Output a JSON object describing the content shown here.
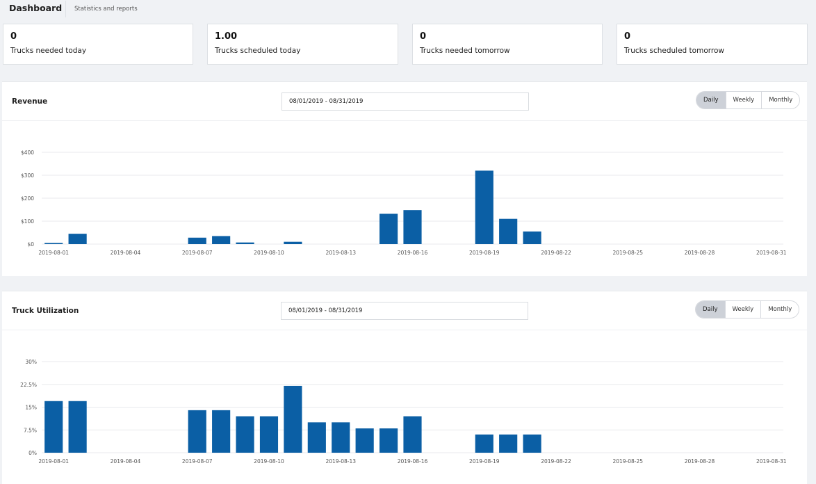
{
  "header": {
    "title": "Dashboard",
    "subtitle": "Statistics and reports"
  },
  "stats": [
    {
      "value": "0",
      "label": "Trucks needed today"
    },
    {
      "value": "1.00",
      "label": "Trucks scheduled today"
    },
    {
      "value": "0",
      "label": "Trucks needed tomorrow"
    },
    {
      "value": "0",
      "label": "Trucks scheduled tomorrow"
    }
  ],
  "revenue": {
    "title": "Revenue",
    "date_range": "08/01/2019 - 08/31/2019",
    "buttons": [
      "Daily",
      "Weekly",
      "Monthly"
    ],
    "active_button": "Daily"
  },
  "utilization": {
    "title": "Truck Utilization",
    "date_range": "08/01/2019 - 08/31/2019",
    "buttons": [
      "Daily",
      "Weekly",
      "Monthly"
    ],
    "active_button": "Daily"
  },
  "colors": {
    "bar": "#0b5fa5",
    "grid": "#e8eaed",
    "background": "#f0f2f5"
  },
  "chart_data": [
    {
      "type": "bar",
      "title": "Revenue",
      "x": [
        "2019-08-01",
        "2019-08-02",
        "2019-08-03",
        "2019-08-04",
        "2019-08-05",
        "2019-08-06",
        "2019-08-07",
        "2019-08-08",
        "2019-08-09",
        "2019-08-10",
        "2019-08-11",
        "2019-08-12",
        "2019-08-13",
        "2019-08-14",
        "2019-08-15",
        "2019-08-16",
        "2019-08-17",
        "2019-08-18",
        "2019-08-19",
        "2019-08-20",
        "2019-08-21",
        "2019-08-22",
        "2019-08-23",
        "2019-08-24",
        "2019-08-25",
        "2019-08-26",
        "2019-08-27",
        "2019-08-28",
        "2019-08-29",
        "2019-08-30",
        "2019-08-31"
      ],
      "values": [
        5,
        45,
        0,
        0,
        0,
        0,
        28,
        35,
        7,
        0,
        10,
        0,
        0,
        0,
        132,
        148,
        0,
        0,
        320,
        110,
        55,
        0,
        0,
        0,
        0,
        0,
        0,
        0,
        0,
        0,
        0
      ],
      "x_tick_labels": [
        "2019-08-01",
        "2019-08-04",
        "2019-08-07",
        "2019-08-10",
        "2019-08-13",
        "2019-08-16",
        "2019-08-19",
        "2019-08-22",
        "2019-08-25",
        "2019-08-28",
        "2019-08-31"
      ],
      "y_tick_labels": [
        "$0",
        "$100",
        "$200",
        "$300",
        "$400"
      ],
      "ylim": [
        0,
        400
      ],
      "grid": true
    },
    {
      "type": "bar",
      "title": "Truck Utilization",
      "x": [
        "2019-08-01",
        "2019-08-02",
        "2019-08-03",
        "2019-08-04",
        "2019-08-05",
        "2019-08-06",
        "2019-08-07",
        "2019-08-08",
        "2019-08-09",
        "2019-08-10",
        "2019-08-11",
        "2019-08-12",
        "2019-08-13",
        "2019-08-14",
        "2019-08-15",
        "2019-08-16",
        "2019-08-17",
        "2019-08-18",
        "2019-08-19",
        "2019-08-20",
        "2019-08-21",
        "2019-08-22",
        "2019-08-23",
        "2019-08-24",
        "2019-08-25",
        "2019-08-26",
        "2019-08-27",
        "2019-08-28",
        "2019-08-29",
        "2019-08-30",
        "2019-08-31"
      ],
      "values": [
        17,
        17,
        0,
        0,
        0,
        0,
        14,
        14,
        12,
        12,
        22,
        10,
        10,
        8,
        8,
        12,
        0,
        0,
        6,
        6,
        6,
        0,
        0,
        0,
        0,
        0,
        0,
        0,
        0,
        0,
        0
      ],
      "x_tick_labels": [
        "2019-08-01",
        "2019-08-04",
        "2019-08-07",
        "2019-08-10",
        "2019-08-13",
        "2019-08-16",
        "2019-08-19",
        "2019-08-22",
        "2019-08-25",
        "2019-08-28",
        "2019-08-31"
      ],
      "y_tick_labels": [
        "0%",
        "7.5%",
        "15%",
        "22.5%",
        "30%"
      ],
      "ylim": [
        0,
        30
      ],
      "grid": true
    }
  ]
}
